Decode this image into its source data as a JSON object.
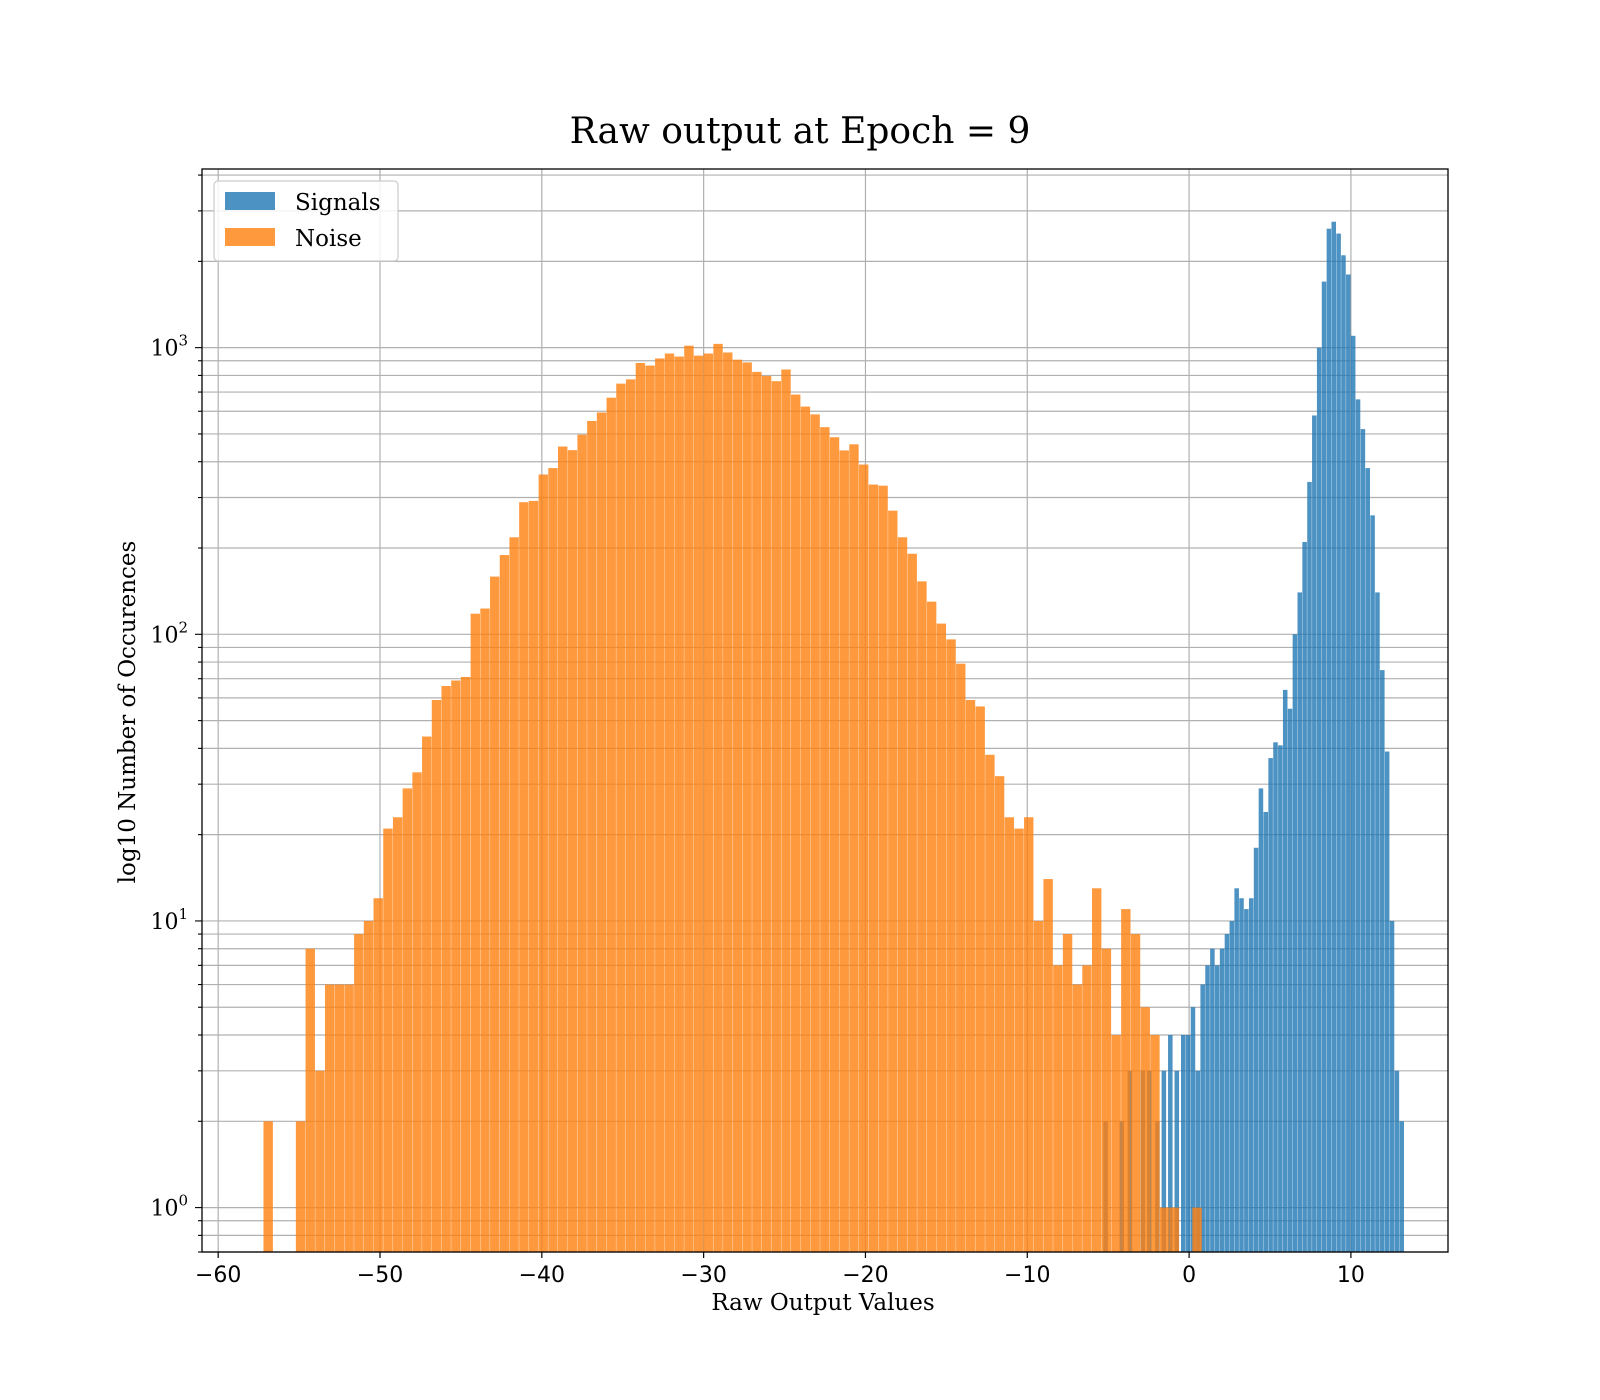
{
  "chart_data": {
    "type": "histogram",
    "title": "Raw output at Epoch = 9",
    "xlabel": "Raw Output Values",
    "ylabel": "log10 Number of Occurences",
    "xlim": [
      -61,
      16
    ],
    "ylim": [
      0.7,
      4200
    ],
    "yscale": "log",
    "grid": true,
    "legend_position": "upper-left",
    "x_ticks": [
      -60,
      -50,
      -40,
      -30,
      -20,
      -10,
      0,
      10
    ],
    "x_tick_labels": [
      "−60",
      "−50",
      "−40",
      "−30",
      "−20",
      "−10",
      "0",
      "10"
    ],
    "y_ticks": [
      {
        "value": 1,
        "base": "10",
        "exp": "0"
      },
      {
        "value": 10,
        "base": "10",
        "exp": "1"
      },
      {
        "value": 100,
        "base": "10",
        "exp": "2"
      },
      {
        "value": 1000,
        "base": "10",
        "exp": "3"
      }
    ],
    "series": [
      {
        "name": "Signals",
        "color": "#1f77b4",
        "opacity": 0.8,
        "bin_width": 0.28,
        "bins": [
          [
            -5.3,
            2
          ],
          [
            -4.3,
            2
          ],
          [
            -3.8,
            3
          ],
          [
            -3.0,
            3
          ],
          [
            -2.6,
            3
          ],
          [
            -2.1,
            2
          ],
          [
            -1.7,
            3
          ],
          [
            -1.3,
            4
          ],
          [
            -0.9,
            3
          ],
          [
            -0.5,
            4
          ],
          [
            -0.2,
            4
          ],
          [
            0.1,
            5
          ],
          [
            0.4,
            3
          ],
          [
            0.7,
            6
          ],
          [
            1.0,
            7
          ],
          [
            1.3,
            8
          ],
          [
            1.6,
            7
          ],
          [
            1.9,
            8
          ],
          [
            2.2,
            9
          ],
          [
            2.5,
            10
          ],
          [
            2.8,
            13
          ],
          [
            3.1,
            12
          ],
          [
            3.4,
            11
          ],
          [
            3.7,
            12
          ],
          [
            4.0,
            18
          ],
          [
            4.3,
            29
          ],
          [
            4.6,
            24
          ],
          [
            4.9,
            37
          ],
          [
            5.2,
            42
          ],
          [
            5.5,
            41
          ],
          [
            5.8,
            64
          ],
          [
            6.1,
            55
          ],
          [
            6.4,
            100
          ],
          [
            6.7,
            140
          ],
          [
            7.0,
            210
          ],
          [
            7.3,
            340
          ],
          [
            7.6,
            580
          ],
          [
            7.9,
            1000
          ],
          [
            8.2,
            1700
          ],
          [
            8.5,
            2600
          ],
          [
            8.8,
            2750
          ],
          [
            9.1,
            2500
          ],
          [
            9.4,
            2100
          ],
          [
            9.7,
            1800
          ],
          [
            10.0,
            1100
          ],
          [
            10.3,
            660
          ],
          [
            10.6,
            520
          ],
          [
            10.9,
            380
          ],
          [
            11.2,
            260
          ],
          [
            11.5,
            140
          ],
          [
            11.8,
            75
          ],
          [
            12.1,
            39
          ],
          [
            12.4,
            10
          ],
          [
            12.7,
            3
          ],
          [
            13.0,
            2
          ]
        ]
      },
      {
        "name": "Noise",
        "color": "#ff7f0e",
        "opacity": 0.8,
        "bin_width": 0.58,
        "bins": [
          [
            -57.2,
            2
          ],
          [
            -55.2,
            2
          ],
          [
            -54.6,
            8
          ],
          [
            -54.0,
            3
          ],
          [
            -53.4,
            6
          ],
          [
            -52.8,
            6
          ],
          [
            -52.2,
            6
          ],
          [
            -51.6,
            9
          ],
          [
            -51.0,
            10
          ],
          [
            -50.4,
            12
          ],
          [
            -49.8,
            21
          ],
          [
            -49.2,
            23
          ],
          [
            -48.6,
            29
          ],
          [
            -48.0,
            33
          ],
          [
            -47.4,
            44
          ],
          [
            -46.8,
            59
          ],
          [
            -46.2,
            66
          ],
          [
            -45.6,
            69
          ],
          [
            -45.0,
            71
          ],
          [
            -44.4,
            118
          ],
          [
            -43.8,
            123
          ],
          [
            -43.2,
            159
          ],
          [
            -42.6,
            189
          ],
          [
            -42.0,
            218
          ],
          [
            -41.4,
            289
          ],
          [
            -40.8,
            292
          ],
          [
            -40.2,
            361
          ],
          [
            -39.6,
            380
          ],
          [
            -39.0,
            452
          ],
          [
            -38.4,
            439
          ],
          [
            -37.8,
            497
          ],
          [
            -37.2,
            555
          ],
          [
            -36.6,
            594
          ],
          [
            -36.0,
            669
          ],
          [
            -35.4,
            749
          ],
          [
            -34.8,
            775
          ],
          [
            -34.2,
            884
          ],
          [
            -33.6,
            866
          ],
          [
            -33.0,
            917
          ],
          [
            -32.4,
            954
          ],
          [
            -31.8,
            931
          ],
          [
            -31.2,
            1016
          ],
          [
            -30.6,
            938
          ],
          [
            -30.0,
            954
          ],
          [
            -29.4,
            1031
          ],
          [
            -28.8,
            962
          ],
          [
            -28.2,
            908
          ],
          [
            -27.6,
            888
          ],
          [
            -27.0,
            823
          ],
          [
            -26.4,
            797
          ],
          [
            -25.8,
            764
          ],
          [
            -25.2,
            839
          ],
          [
            -24.6,
            686
          ],
          [
            -24.0,
            623
          ],
          [
            -23.4,
            585
          ],
          [
            -22.8,
            528
          ],
          [
            -22.2,
            487
          ],
          [
            -21.6,
            438
          ],
          [
            -21.0,
            460
          ],
          [
            -20.4,
            391
          ],
          [
            -19.8,
            333
          ],
          [
            -19.2,
            330
          ],
          [
            -18.6,
            270
          ],
          [
            -18.0,
            218
          ],
          [
            -17.4,
            191
          ],
          [
            -16.8,
            153
          ],
          [
            -16.2,
            130
          ],
          [
            -15.6,
            109
          ],
          [
            -15.0,
            96
          ],
          [
            -14.4,
            79
          ],
          [
            -13.8,
            59
          ],
          [
            -13.2,
            56
          ],
          [
            -12.6,
            38
          ],
          [
            -12.0,
            32
          ],
          [
            -11.4,
            23
          ],
          [
            -10.8,
            21
          ],
          [
            -10.2,
            23
          ],
          [
            -9.6,
            10
          ],
          [
            -9.0,
            14
          ],
          [
            -8.4,
            7
          ],
          [
            -7.8,
            9
          ],
          [
            -7.2,
            6
          ],
          [
            -6.6,
            7
          ],
          [
            -6.0,
            13
          ],
          [
            -5.4,
            8
          ],
          [
            -4.8,
            4
          ],
          [
            -4.2,
            11
          ],
          [
            -3.6,
            9
          ],
          [
            -3.0,
            5
          ],
          [
            -2.4,
            4
          ],
          [
            -1.8,
            1
          ],
          [
            -1.2,
            1
          ],
          [
            0.2,
            1
          ]
        ]
      }
    ]
  }
}
